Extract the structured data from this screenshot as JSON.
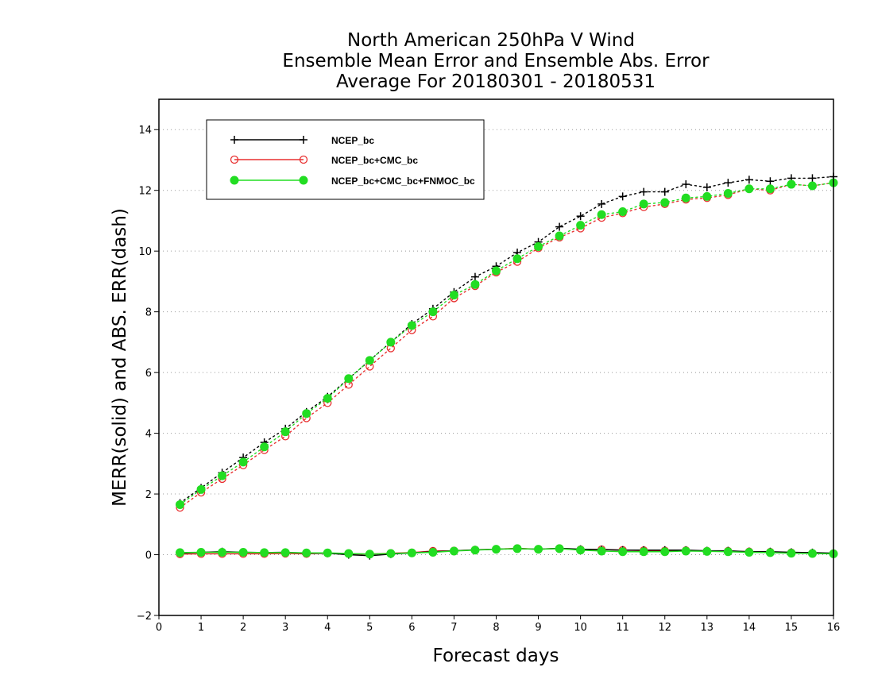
{
  "chart_data": {
    "type": "line",
    "title": [
      "North American 250hPa V Wind",
      "Ensemble Mean Error and Ensemble Abs. Error",
      "Average For 20180301 - 20180531"
    ],
    "xlabel": "Forecast days",
    "ylabel": "MERR(solid) and ABS. ERR(dash)",
    "xlim": [
      0,
      16
    ],
    "ylim": [
      -2,
      15
    ],
    "xticks": [
      0,
      1,
      2,
      3,
      4,
      5,
      6,
      7,
      8,
      9,
      10,
      11,
      12,
      13,
      14,
      15,
      16
    ],
    "yticks": [
      -2,
      0,
      2,
      4,
      6,
      8,
      10,
      12,
      14
    ],
    "grid": "horizontal dotted",
    "legend_position": "top-left",
    "x": [
      0.5,
      1,
      1.5,
      2,
      2.5,
      3,
      3.5,
      4,
      4.5,
      5,
      5.5,
      6,
      6.5,
      7,
      7.5,
      8,
      8.5,
      9,
      9.5,
      10,
      10.5,
      11,
      11.5,
      12,
      12.5,
      13,
      13.5,
      14,
      14.5,
      15,
      15.5,
      16
    ],
    "series": [
      {
        "name": "NCEP_bc",
        "color": "#000000",
        "marker": "plus",
        "abs_error": [
          1.7,
          2.2,
          2.7,
          3.2,
          3.7,
          4.15,
          4.7,
          5.2,
          5.8,
          6.4,
          7.0,
          7.6,
          8.1,
          8.65,
          9.15,
          9.5,
          9.95,
          10.3,
          10.8,
          11.15,
          11.55,
          11.8,
          11.95,
          11.95,
          12.2,
          12.1,
          12.25,
          12.35,
          12.3,
          12.4,
          12.4,
          12.45
        ],
        "mean_error": [
          0.05,
          0.08,
          0.1,
          0.08,
          0.07,
          0.08,
          0.05,
          0.05,
          0.0,
          -0.03,
          0.02,
          0.06,
          0.1,
          0.13,
          0.16,
          0.18,
          0.2,
          0.18,
          0.21,
          0.18,
          0.17,
          0.15,
          0.15,
          0.15,
          0.15,
          0.13,
          0.13,
          0.1,
          0.1,
          0.08,
          0.07,
          0.05
        ]
      },
      {
        "name": "NCEP_bc+CMC_bc",
        "color": "#e83030",
        "marker": "circle-open",
        "abs_error": [
          1.55,
          2.05,
          2.5,
          2.95,
          3.45,
          3.9,
          4.5,
          5.0,
          5.6,
          6.2,
          6.8,
          7.4,
          7.85,
          8.45,
          8.85,
          9.3,
          9.65,
          10.1,
          10.45,
          10.75,
          11.1,
          11.25,
          11.45,
          11.55,
          11.7,
          11.75,
          11.85,
          12.05,
          12.0,
          12.2,
          12.15,
          12.25
        ],
        "mean_error": [
          0.02,
          0.03,
          0.03,
          0.03,
          0.03,
          0.04,
          0.03,
          0.05,
          0.03,
          0.02,
          0.05,
          0.07,
          0.12,
          0.13,
          0.16,
          0.18,
          0.21,
          0.18,
          0.21,
          0.17,
          0.17,
          0.15,
          0.14,
          0.13,
          0.14,
          0.12,
          0.12,
          0.1,
          0.09,
          0.07,
          0.05,
          0.04
        ]
      },
      {
        "name": "NCEP_bc+CMC_bc+FNMOC_bc",
        "color": "#22dd22",
        "marker": "circle-filled",
        "abs_error": [
          1.65,
          2.15,
          2.6,
          3.05,
          3.55,
          4.05,
          4.65,
          5.15,
          5.8,
          6.4,
          7.0,
          7.55,
          8.0,
          8.55,
          8.9,
          9.35,
          9.75,
          10.15,
          10.5,
          10.85,
          11.2,
          11.3,
          11.55,
          11.6,
          11.75,
          11.8,
          11.9,
          12.05,
          12.05,
          12.2,
          12.15,
          12.25
        ],
        "mean_error": [
          0.07,
          0.08,
          0.08,
          0.08,
          0.07,
          0.07,
          0.06,
          0.06,
          0.04,
          0.02,
          0.04,
          0.06,
          0.08,
          0.12,
          0.15,
          0.18,
          0.2,
          0.18,
          0.2,
          0.15,
          0.12,
          0.1,
          0.1,
          0.1,
          0.12,
          0.11,
          0.1,
          0.08,
          0.07,
          0.05,
          0.04,
          0.03
        ]
      }
    ]
  }
}
